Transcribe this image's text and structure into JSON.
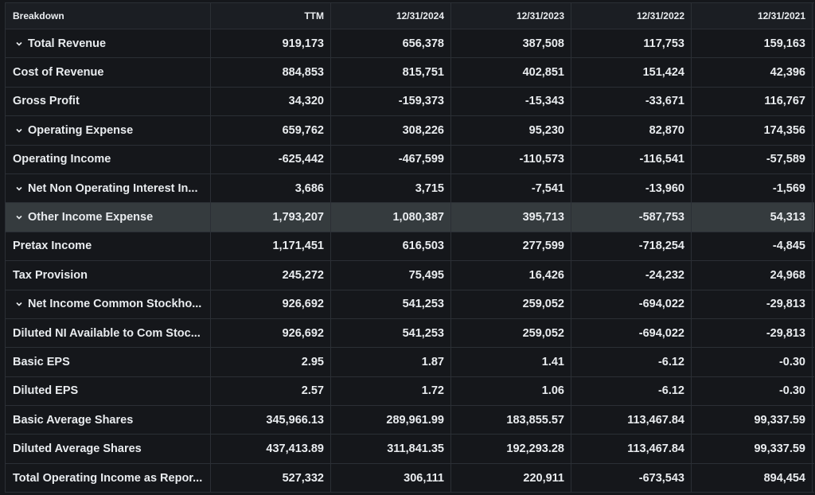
{
  "headers": [
    "Breakdown",
    "TTM",
    "12/31/2024",
    "12/31/2023",
    "12/31/2022",
    "12/31/2021"
  ],
  "rows": [
    {
      "label": "Total Revenue",
      "expandable": true,
      "values": [
        "919,173",
        "656,378",
        "387,508",
        "117,753",
        "159,163"
      ]
    },
    {
      "label": "Cost of Revenue",
      "expandable": false,
      "values": [
        "884,853",
        "815,751",
        "402,851",
        "151,424",
        "42,396"
      ]
    },
    {
      "label": "Gross Profit",
      "expandable": false,
      "values": [
        "34,320",
        "-159,373",
        "-15,343",
        "-33,671",
        "116,767"
      ]
    },
    {
      "label": "Operating Expense",
      "expandable": true,
      "values": [
        "659,762",
        "308,226",
        "95,230",
        "82,870",
        "174,356"
      ]
    },
    {
      "label": "Operating Income",
      "expandable": false,
      "values": [
        "-625,442",
        "-467,599",
        "-110,573",
        "-116,541",
        "-57,589"
      ]
    },
    {
      "label": "Net Non Operating Interest In...",
      "expandable": true,
      "values": [
        "3,686",
        "3,715",
        "-7,541",
        "-13,960",
        "-1,569"
      ]
    },
    {
      "label": "Other Income Expense",
      "expandable": true,
      "highlighted": true,
      "values": [
        "1,793,207",
        "1,080,387",
        "395,713",
        "-587,753",
        "54,313"
      ]
    },
    {
      "label": "Pretax Income",
      "expandable": false,
      "values": [
        "1,171,451",
        "616,503",
        "277,599",
        "-718,254",
        "-4,845"
      ]
    },
    {
      "label": "Tax Provision",
      "expandable": false,
      "values": [
        "245,272",
        "75,495",
        "16,426",
        "-24,232",
        "24,968"
      ]
    },
    {
      "label": "Net Income Common Stockho...",
      "expandable": true,
      "values": [
        "926,692",
        "541,253",
        "259,052",
        "-694,022",
        "-29,813"
      ]
    },
    {
      "label": "Diluted NI Available to Com Stoc...",
      "expandable": false,
      "values": [
        "926,692",
        "541,253",
        "259,052",
        "-694,022",
        "-29,813"
      ]
    },
    {
      "label": "Basic EPS",
      "expandable": false,
      "values": [
        "2.95",
        "1.87",
        "1.41",
        "-6.12",
        "-0.30"
      ]
    },
    {
      "label": "Diluted EPS",
      "expandable": false,
      "values": [
        "2.57",
        "1.72",
        "1.06",
        "-6.12",
        "-0.30"
      ]
    },
    {
      "label": "Basic Average Shares",
      "expandable": false,
      "values": [
        "345,966.13",
        "289,961.99",
        "183,855.57",
        "113,467.84",
        "99,337.59"
      ]
    },
    {
      "label": "Diluted Average Shares",
      "expandable": false,
      "values": [
        "437,413.89",
        "311,841.35",
        "192,293.28",
        "113,467.84",
        "99,337.59"
      ]
    },
    {
      "label": "Total Operating Income as Repor...",
      "expandable": false,
      "values": [
        "527,332",
        "306,111",
        "220,911",
        "-673,543",
        "894,454"
      ]
    }
  ],
  "icons": {
    "expand": "chevron-down-icon"
  },
  "colors": {
    "background": "#15171b",
    "header_background": "#1b1e23",
    "highlight_row": "#353b3e",
    "grid_line": "#2b2f35",
    "text": "#e9ecef"
  }
}
